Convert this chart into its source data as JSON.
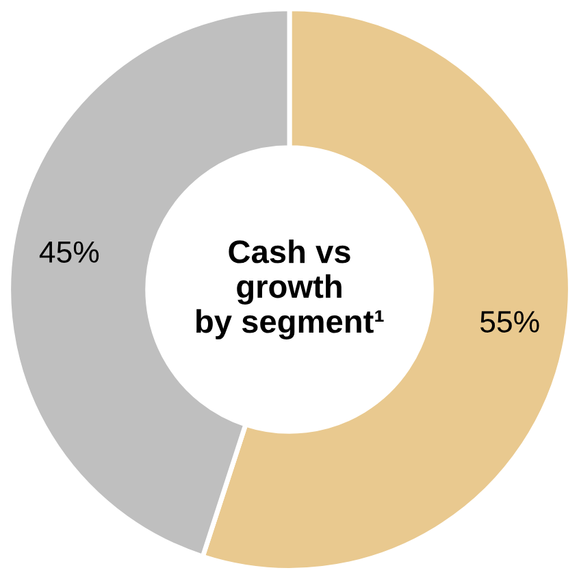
{
  "chart_data": {
    "type": "donut",
    "title": "Cash vs\ngrowth\nby segment¹",
    "categories": [
      null,
      null
    ],
    "values": [
      55,
      45
    ],
    "colors": [
      "#e9c98f",
      "#bfbfbf"
    ],
    "value_labels": [
      "55%",
      "45%"
    ]
  }
}
